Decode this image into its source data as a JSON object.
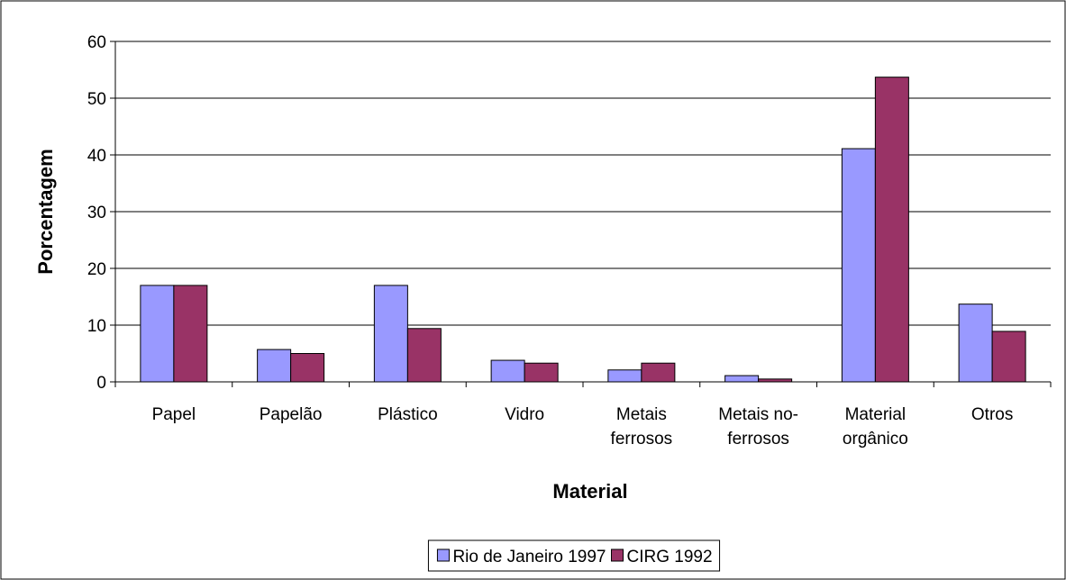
{
  "chart_data": {
    "type": "bar",
    "categories": [
      "Papel",
      "Papelão",
      "Plástico",
      "Vidro",
      "Metais\nferrosos",
      "Metais no-\nferrosos",
      "Material\norgânico",
      "Otros"
    ],
    "series": [
      {
        "name": "Rio de Janeiro 1997",
        "color": "#9999ff",
        "values": [
          17,
          5.7,
          17,
          3.8,
          2.1,
          1.1,
          41.1,
          13.7
        ]
      },
      {
        "name": "CIRG 1992",
        "color": "#993366",
        "values": [
          17,
          5,
          9.4,
          3.3,
          3.3,
          0.5,
          53.7,
          8.9
        ]
      }
    ],
    "xlabel": "Material",
    "ylabel": "Porcentagem",
    "ylim": [
      0,
      60
    ],
    "yticks": [
      0,
      10,
      20,
      30,
      40,
      50,
      60
    ],
    "grid": true,
    "legend": "bottom"
  }
}
